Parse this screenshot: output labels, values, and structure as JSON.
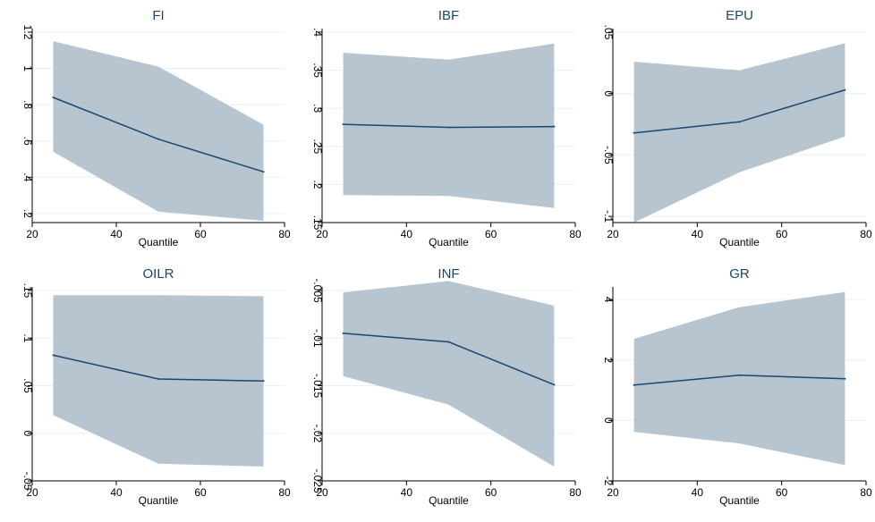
{
  "colors": {
    "ci_band": "#b7c5d1",
    "line": "#1a476f",
    "grid": "#eaf0f3",
    "title": "#1a476f"
  },
  "chart_data": [
    {
      "type": "area",
      "title": "FI",
      "xlabel": "Quantile",
      "ylabel": "",
      "grid": true,
      "xlim": [
        20,
        80
      ],
      "ylim": [
        0.15,
        1.2
      ],
      "xticks": [
        20,
        40,
        60,
        80
      ],
      "xtick_labels": [
        "20",
        "40",
        "60",
        "80"
      ],
      "yticks": [
        0.2,
        0.4,
        0.6,
        0.8,
        1.0,
        1.2
      ],
      "ytick_labels": [
        ".2",
        ".4",
        ".6",
        ".8",
        "1",
        "1.2"
      ],
      "x": [
        25,
        50,
        75
      ],
      "estimate": [
        0.84,
        0.61,
        0.43
      ],
      "ci_lower": [
        0.54,
        0.21,
        0.16
      ],
      "ci_upper": [
        1.15,
        1.01,
        0.69
      ]
    },
    {
      "type": "area",
      "title": "IBF",
      "xlabel": "Quantile",
      "ylabel": "",
      "grid": true,
      "xlim": [
        20,
        80
      ],
      "ylim": [
        0.15,
        0.4
      ],
      "xticks": [
        20,
        40,
        60,
        80
      ],
      "xtick_labels": [
        "20",
        "40",
        "60",
        "80"
      ],
      "yticks": [
        0.15,
        0.2,
        0.25,
        0.3,
        0.35,
        0.4
      ],
      "ytick_labels": [
        ".15",
        ".2",
        ".25",
        ".3",
        ".35",
        ".4"
      ],
      "x": [
        25,
        50,
        75
      ],
      "estimate": [
        0.279,
        0.275,
        0.276
      ],
      "ci_lower": [
        0.186,
        0.185,
        0.169
      ],
      "ci_upper": [
        0.373,
        0.364,
        0.385
      ]
    },
    {
      "type": "area",
      "title": "EPU",
      "xlabel": "Quantile",
      "ylabel": "",
      "grid": true,
      "xlim": [
        20,
        80
      ],
      "ylim": [
        -0.105,
        0.05
      ],
      "xticks": [
        20,
        40,
        60,
        80
      ],
      "xtick_labels": [
        "20",
        "40",
        "60",
        "80"
      ],
      "yticks": [
        -0.1,
        -0.05,
        0,
        0.05
      ],
      "ytick_labels": [
        "-.1",
        "-.05",
        "0",
        ".05"
      ],
      "x": [
        25,
        50,
        75
      ],
      "estimate": [
        -0.032,
        -0.023,
        0.003
      ],
      "ci_lower": [
        -0.105,
        -0.064,
        -0.035
      ],
      "ci_upper": [
        0.026,
        0.019,
        0.041
      ]
    },
    {
      "type": "area",
      "title": "OILR",
      "xlabel": "Quantile",
      "ylabel": "",
      "grid": true,
      "xlim": [
        20,
        80
      ],
      "ylim": [
        -0.05,
        0.15
      ],
      "xticks": [
        20,
        40,
        60,
        80
      ],
      "xtick_labels": [
        "20",
        "40",
        "60",
        "80"
      ],
      "yticks": [
        -0.05,
        0,
        0.05,
        0.1,
        0.15
      ],
      "ytick_labels": [
        "-.05",
        "0",
        ".05",
        ".1",
        ".15"
      ],
      "x": [
        25,
        50,
        75
      ],
      "estimate": [
        0.082,
        0.057,
        0.055
      ],
      "ci_lower": [
        0.019,
        -0.032,
        -0.035
      ],
      "ci_upper": [
        0.145,
        0.145,
        0.144
      ]
    },
    {
      "type": "area",
      "title": "INF",
      "xlabel": "Quantile",
      "ylabel": "",
      "grid": true,
      "xlim": [
        20,
        80
      ],
      "ylim": [
        -0.025,
        -0.005
      ],
      "xticks": [
        20,
        40,
        60,
        80
      ],
      "xtick_labels": [
        "20",
        "40",
        "60",
        "80"
      ],
      "yticks": [
        -0.025,
        -0.02,
        -0.015,
        -0.01,
        -0.005
      ],
      "ytick_labels": [
        "-.025",
        "-.02",
        "-.015",
        "-.01",
        "-.005"
      ],
      "x": [
        25,
        50,
        75
      ],
      "estimate": [
        -0.0095,
        -0.0104,
        -0.0149
      ],
      "ci_lower": [
        -0.014,
        -0.017,
        -0.0235
      ],
      "ci_upper": [
        -0.0052,
        -0.004,
        -0.0066
      ]
    },
    {
      "type": "area",
      "title": "GR",
      "xlabel": "Quantile",
      "ylabel": "",
      "grid": true,
      "xlim": [
        20,
        80
      ],
      "ylim": [
        -2,
        4.3
      ],
      "xticks": [
        20,
        40,
        60,
        80
      ],
      "xtick_labels": [
        "20",
        "40",
        "60",
        "80"
      ],
      "yticks": [
        -2,
        0,
        2,
        4
      ],
      "ytick_labels": [
        "-2",
        "0",
        "2",
        "4"
      ],
      "x": [
        25,
        50,
        75
      ],
      "estimate": [
        1.17,
        1.5,
        1.38
      ],
      "ci_lower": [
        -0.38,
        -0.76,
        -1.48
      ],
      "ci_upper": [
        2.7,
        3.75,
        4.25
      ]
    }
  ]
}
